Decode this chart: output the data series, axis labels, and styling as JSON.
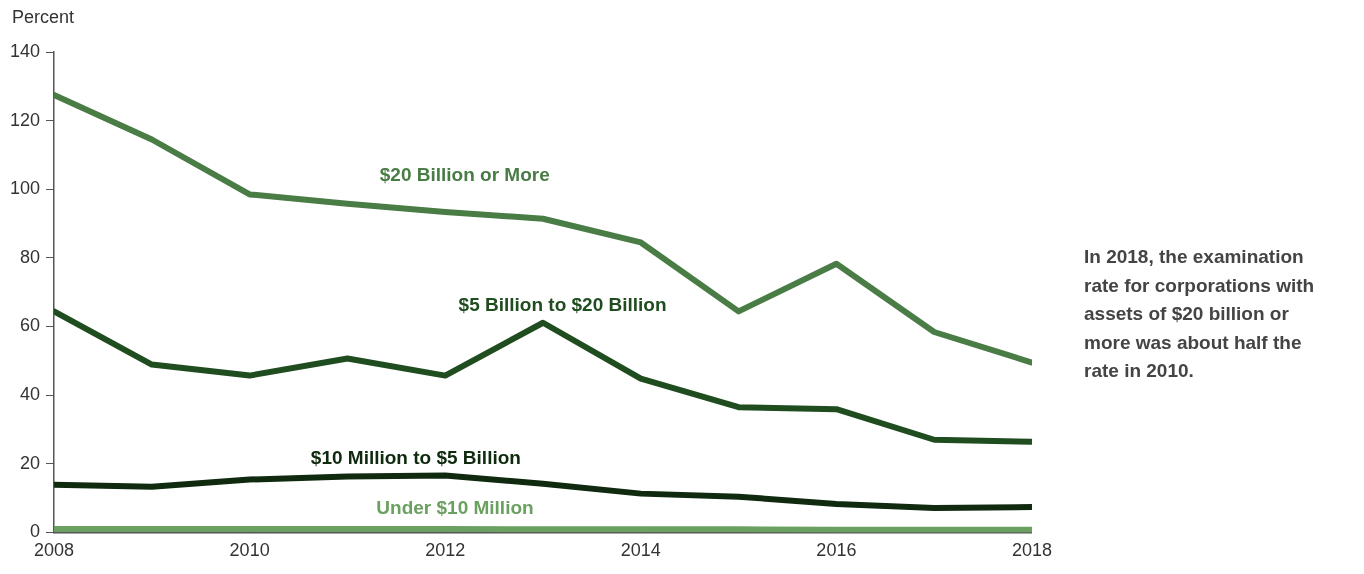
{
  "chart_data": {
    "type": "line",
    "ylabel": "Percent",
    "x": [
      2008,
      2009,
      2010,
      2011,
      2012,
      2013,
      2014,
      2015,
      2016,
      2017,
      2018
    ],
    "xlim": [
      2008,
      2018
    ],
    "xticks": [
      2008,
      2010,
      2012,
      2014,
      2016,
      2018
    ],
    "ylim": [
      0,
      140
    ],
    "yticks": [
      0,
      20,
      40,
      60,
      80,
      100,
      120,
      140
    ],
    "grid": false,
    "legend": false,
    "marker": "none",
    "line_style": "solid",
    "series": [
      {
        "name": "$20 Billion or More",
        "color": "#4a7c45",
        "values": [
          127.5,
          114.5,
          98.5,
          95.8,
          93.4,
          91.4,
          84.5,
          64.4,
          78.3,
          58.4,
          49.5
        ]
      },
      {
        "name": "$5 Billion to $20 Billion",
        "color": "#1f4d1f",
        "values": [
          64.4,
          48.9,
          45.7,
          50.7,
          45.7,
          61.1,
          44.8,
          36.5,
          35.9,
          27.0,
          26.4
        ]
      },
      {
        "name": "$10 Million to $5 Billion",
        "color": "#0f2a0f",
        "values": [
          13.9,
          13.3,
          15.4,
          16.3,
          16.6,
          14.2,
          11.3,
          10.4,
          8.3,
          7.1,
          7.4
        ]
      },
      {
        "name": "Under $10 Million",
        "color": "#6aa060",
        "values": [
          1.0,
          1.0,
          1.0,
          1.0,
          1.0,
          0.9,
          0.9,
          0.9,
          0.8,
          0.8,
          0.8
        ]
      }
    ],
    "annotations": [
      "In 2018, the examination rate for corporations with assets of $20 billion or more was about half the rate in 2010."
    ]
  }
}
